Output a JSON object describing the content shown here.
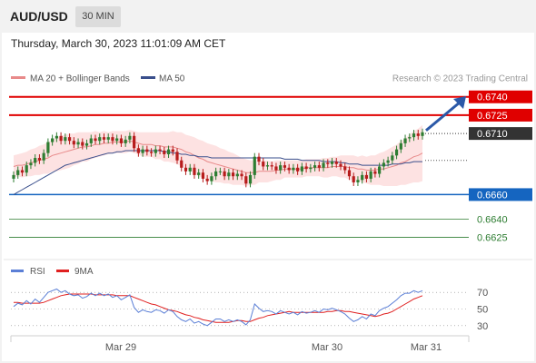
{
  "header": {
    "symbol": "AUD/USD",
    "timeframe": "30 MIN",
    "datetime": "Thursday, March 30, 2023 11:01:09 AM CET"
  },
  "colors": {
    "bull": "#2e7d32",
    "bear": "#b71c1c",
    "resistance": "#e00000",
    "support": "#1565c0",
    "target": "#2e7d32",
    "ma20": "#e88a8a",
    "ma50": "#3a4f8c",
    "bands": "#fde2e2",
    "arrow": "#2b59a8",
    "rsi": "#5b7fd6",
    "rsi_ma": "#e02020"
  },
  "chart_data": [
    {
      "type": "candlestick",
      "legend": [
        {
          "name": "MA 20 + Bollinger Bands",
          "color": "#e88a8a"
        },
        {
          "name": "MA 50",
          "color": "#3a4f8c"
        }
      ],
      "credit": "Research © 2023 Trading Central",
      "x_ticks": [
        "Mar 29",
        "Mar 30",
        "Mar 31"
      ],
      "ylim": [
        0.6615,
        0.6745
      ],
      "levels": [
        {
          "label": "0.6740",
          "value": 0.674,
          "kind": "resistance"
        },
        {
          "label": "0.6725",
          "value": 0.6725,
          "kind": "resistance"
        },
        {
          "label": "0.6710",
          "value": 0.671,
          "kind": "current"
        },
        {
          "label": "0.6660",
          "value": 0.666,
          "kind": "support"
        },
        {
          "label": "0.6640",
          "value": 0.664,
          "kind": "target"
        },
        {
          "label": "0.6625",
          "value": 0.6625,
          "kind": "target"
        }
      ],
      "close": [
        0.6676,
        0.668,
        0.6678,
        0.6684,
        0.6686,
        0.669,
        0.6688,
        0.6694,
        0.6703,
        0.6706,
        0.6708,
        0.6704,
        0.6707,
        0.6704,
        0.6701,
        0.6703,
        0.67,
        0.6702,
        0.6706,
        0.6704,
        0.6707,
        0.6705,
        0.6707,
        0.6704,
        0.6706,
        0.6702,
        0.6705,
        0.6708,
        0.6698,
        0.6694,
        0.6697,
        0.6695,
        0.6694,
        0.6697,
        0.6696,
        0.6693,
        0.6697,
        0.6695,
        0.6688,
        0.6682,
        0.6679,
        0.6682,
        0.6676,
        0.6678,
        0.6673,
        0.6671,
        0.6675,
        0.6679,
        0.6679,
        0.6675,
        0.6678,
        0.6675,
        0.6677,
        0.6675,
        0.6669,
        0.6676,
        0.6691,
        0.6687,
        0.6683,
        0.6684,
        0.6683,
        0.668,
        0.6684,
        0.6682,
        0.668,
        0.6682,
        0.6679,
        0.6683,
        0.6681,
        0.6682,
        0.6684,
        0.6682,
        0.6686,
        0.6685,
        0.6687,
        0.6685,
        0.6683,
        0.668,
        0.6675,
        0.667,
        0.6672,
        0.6676,
        0.6673,
        0.6679,
        0.6677,
        0.6683,
        0.6686,
        0.6688,
        0.6692,
        0.6697,
        0.6702,
        0.6706,
        0.6707,
        0.671,
        0.6708,
        0.6711
      ],
      "ma20": [
        0.6683,
        0.6684,
        0.6684,
        0.6685,
        0.6686,
        0.6687,
        0.6688,
        0.6689,
        0.669,
        0.6692,
        0.6693,
        0.6694,
        0.6695,
        0.6696,
        0.6697,
        0.6698,
        0.6699,
        0.6699,
        0.67,
        0.6701,
        0.6701,
        0.6702,
        0.6702,
        0.6703,
        0.6703,
        0.6703,
        0.6703,
        0.6704,
        0.6703,
        0.6702,
        0.6701,
        0.6701,
        0.6701,
        0.67,
        0.67,
        0.6699,
        0.6699,
        0.6699,
        0.6698,
        0.6697,
        0.6695,
        0.6694,
        0.6692,
        0.669,
        0.6689,
        0.6687,
        0.6686,
        0.6685,
        0.6684,
        0.6683,
        0.6682,
        0.6681,
        0.668,
        0.6679,
        0.6678,
        0.6678,
        0.6678,
        0.6679,
        0.6679,
        0.6679,
        0.6679,
        0.668,
        0.668,
        0.6681,
        0.6681,
        0.6681,
        0.6681,
        0.6681,
        0.6682,
        0.6682,
        0.6682,
        0.6682,
        0.6682,
        0.6682,
        0.6683,
        0.6683,
        0.6683,
        0.6683,
        0.6682,
        0.6682,
        0.6681,
        0.6681,
        0.668,
        0.668,
        0.668,
        0.6681,
        0.6681,
        0.6682,
        0.6683,
        0.6684,
        0.6686,
        0.6687,
        0.6689,
        0.6691,
        0.6692,
        0.6694
      ],
      "ma50": [
        0.666,
        0.6662,
        0.6664,
        0.6666,
        0.6668,
        0.667,
        0.6672,
        0.6674,
        0.6676,
        0.6678,
        0.668,
        0.6682,
        0.6684,
        0.6685,
        0.6686,
        0.6687,
        0.6688,
        0.6689,
        0.669,
        0.6691,
        0.6692,
        0.6693,
        0.6694,
        0.6694,
        0.6695,
        0.6695,
        0.6696,
        0.6696,
        0.6696,
        0.6696,
        0.6696,
        0.6696,
        0.6696,
        0.6696,
        0.6696,
        0.6695,
        0.6695,
        0.6694,
        0.6694,
        0.6693,
        0.6693,
        0.6692,
        0.6692,
        0.6691,
        0.6691,
        0.6691,
        0.669,
        0.669,
        0.669,
        0.669,
        0.669,
        0.669,
        0.669,
        0.669,
        0.669,
        0.669,
        0.669,
        0.669,
        0.669,
        0.669,
        0.669,
        0.669,
        0.669,
        0.6689,
        0.6689,
        0.6689,
        0.6689,
        0.6688,
        0.6688,
        0.6688,
        0.6688,
        0.6688,
        0.6687,
        0.6687,
        0.6687,
        0.6687,
        0.6686,
        0.6686,
        0.6685,
        0.6685,
        0.6685,
        0.6684,
        0.6684,
        0.6684,
        0.6684,
        0.6684,
        0.6684,
        0.6684,
        0.6685,
        0.6685,
        0.6685,
        0.6686,
        0.6686,
        0.6687,
        0.6687,
        0.6687
      ],
      "band_width": [
        0.0009,
        0.0009,
        0.001,
        0.001,
        0.0011,
        0.0011,
        0.0012,
        0.0012,
        0.0013,
        0.0013,
        0.0014,
        0.0014,
        0.0014,
        0.0014,
        0.0013,
        0.0013,
        0.0012,
        0.0012,
        0.0011,
        0.0011,
        0.001,
        0.001,
        0.0009,
        0.0009,
        0.0009,
        0.0009,
        0.0009,
        0.0009,
        0.0009,
        0.0009,
        0.001,
        0.001,
        0.001,
        0.0011,
        0.0011,
        0.0012,
        0.0012,
        0.0013,
        0.0013,
        0.0014,
        0.0014,
        0.0014,
        0.0015,
        0.0015,
        0.0015,
        0.0015,
        0.0015,
        0.0015,
        0.0014,
        0.0014,
        0.0013,
        0.0013,
        0.0012,
        0.0011,
        0.0011,
        0.001,
        0.001,
        0.0009,
        0.0009,
        0.0009,
        0.0008,
        0.0008,
        0.0008,
        0.0007,
        0.0007,
        0.0007,
        0.0007,
        0.0007,
        0.0007,
        0.0007,
        0.0007,
        0.0007,
        0.0008,
        0.0008,
        0.0008,
        0.0008,
        0.0009,
        0.0009,
        0.001,
        0.001,
        0.001,
        0.0011,
        0.0011,
        0.0012,
        0.0012,
        0.0013,
        0.0014,
        0.0015,
        0.0016,
        0.0017,
        0.0018,
        0.0019,
        0.002,
        0.0021,
        0.0022,
        0.0023
      ]
    },
    {
      "type": "line",
      "legend": [
        {
          "name": "RSI",
          "color": "#5b7fd6"
        },
        {
          "name": "9MA",
          "color": "#e02020"
        }
      ],
      "y_ticks": [
        70,
        50,
        30
      ],
      "ylim": [
        20,
        80
      ],
      "rsi": [
        53,
        57,
        55,
        60,
        56,
        62,
        58,
        64,
        70,
        72,
        74,
        70,
        72,
        68,
        66,
        67,
        63,
        65,
        69,
        66,
        69,
        66,
        68,
        64,
        66,
        61,
        64,
        67,
        52,
        46,
        49,
        47,
        46,
        49,
        48,
        45,
        49,
        47,
        41,
        37,
        35,
        38,
        33,
        35,
        32,
        30,
        34,
        38,
        38,
        35,
        37,
        35,
        37,
        35,
        31,
        37,
        56,
        51,
        47,
        48,
        47,
        44,
        48,
        46,
        44,
        46,
        43,
        47,
        45,
        46,
        48,
        46,
        50,
        49,
        51,
        49,
        47,
        44,
        39,
        35,
        37,
        41,
        38,
        44,
        42,
        48,
        51,
        53,
        57,
        61,
        66,
        69,
        69,
        72,
        70,
        72
      ],
      "ma9": [
        58,
        58,
        57,
        57,
        57,
        57,
        57,
        58,
        60,
        62,
        64,
        66,
        67,
        68,
        68,
        68,
        68,
        68,
        68,
        67,
        67,
        67,
        67,
        67,
        66,
        66,
        66,
        66,
        64,
        62,
        60,
        58,
        56,
        55,
        53,
        51,
        49,
        48,
        47,
        45,
        43,
        42,
        40,
        39,
        37,
        36,
        35,
        34,
        34,
        34,
        34,
        35,
        36,
        36,
        35,
        35,
        37,
        39,
        40,
        42,
        43,
        44,
        45,
        46,
        47,
        46,
        46,
        46,
        46,
        46,
        46,
        46,
        46,
        47,
        47,
        48,
        48,
        47,
        47,
        46,
        45,
        44,
        43,
        42,
        41,
        42,
        44,
        45,
        47,
        50,
        53,
        56,
        59,
        62,
        64,
        66
      ]
    }
  ]
}
